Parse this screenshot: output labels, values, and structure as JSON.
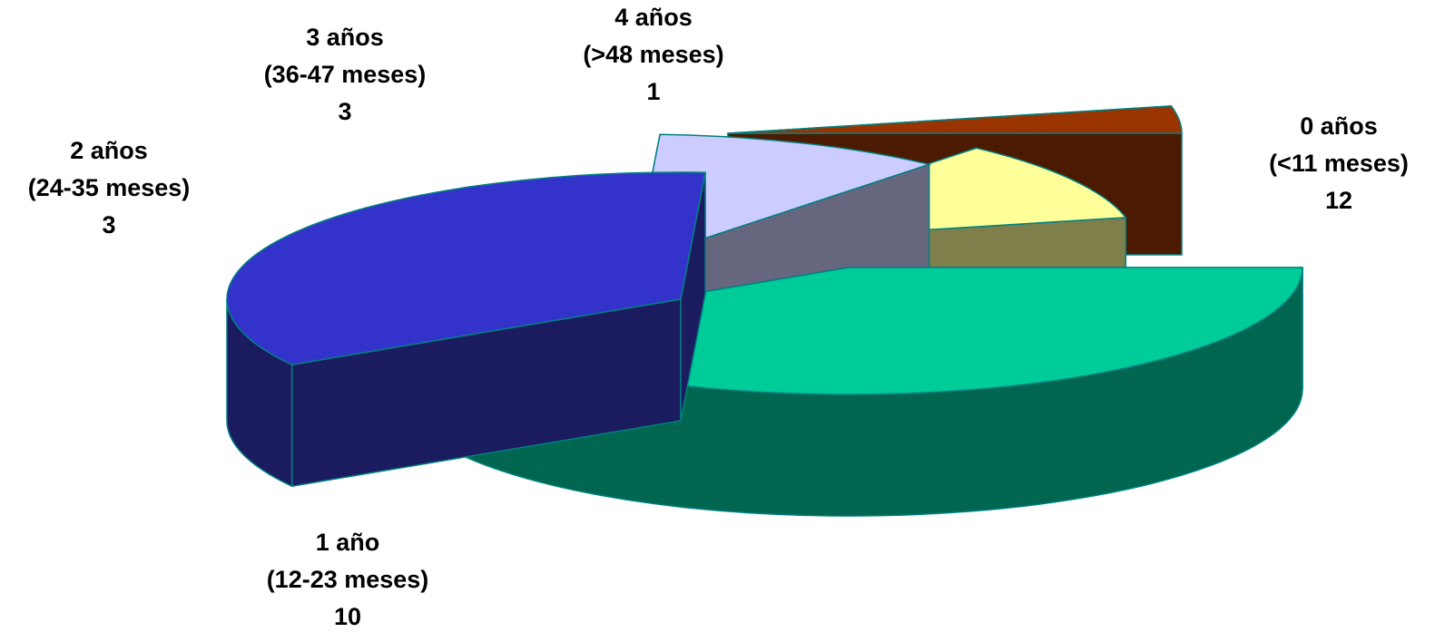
{
  "chart_data": {
    "type": "pie",
    "style": "3d-exploded",
    "slices": [
      {
        "label_lines": [
          "0 años",
          "(<11 meses)",
          "12"
        ],
        "value": 12,
        "top_color": "#00CC99",
        "side_color": "#006650"
      },
      {
        "label_lines": [
          "1 año",
          "(12-23 meses)",
          "10"
        ],
        "value": 10,
        "top_color": "#3333CC",
        "side_color": "#1B1B60"
      },
      {
        "label_lines": [
          "2 años",
          "(24-35 meses)",
          "3"
        ],
        "value": 3,
        "top_color": "#CCCCFF",
        "side_color": "#66667F"
      },
      {
        "label_lines": [
          "3 años",
          "(36-47 meses)",
          "3"
        ],
        "value": 3,
        "top_color": "#FFFF99",
        "side_color": "#7F7F4C"
      },
      {
        "label_lines": [
          "4 años",
          "(>48 meses)",
          "1"
        ],
        "value": 1,
        "top_color": "#993300",
        "side_color": "#4C1A00"
      }
    ],
    "edge_color": "#008080"
  }
}
